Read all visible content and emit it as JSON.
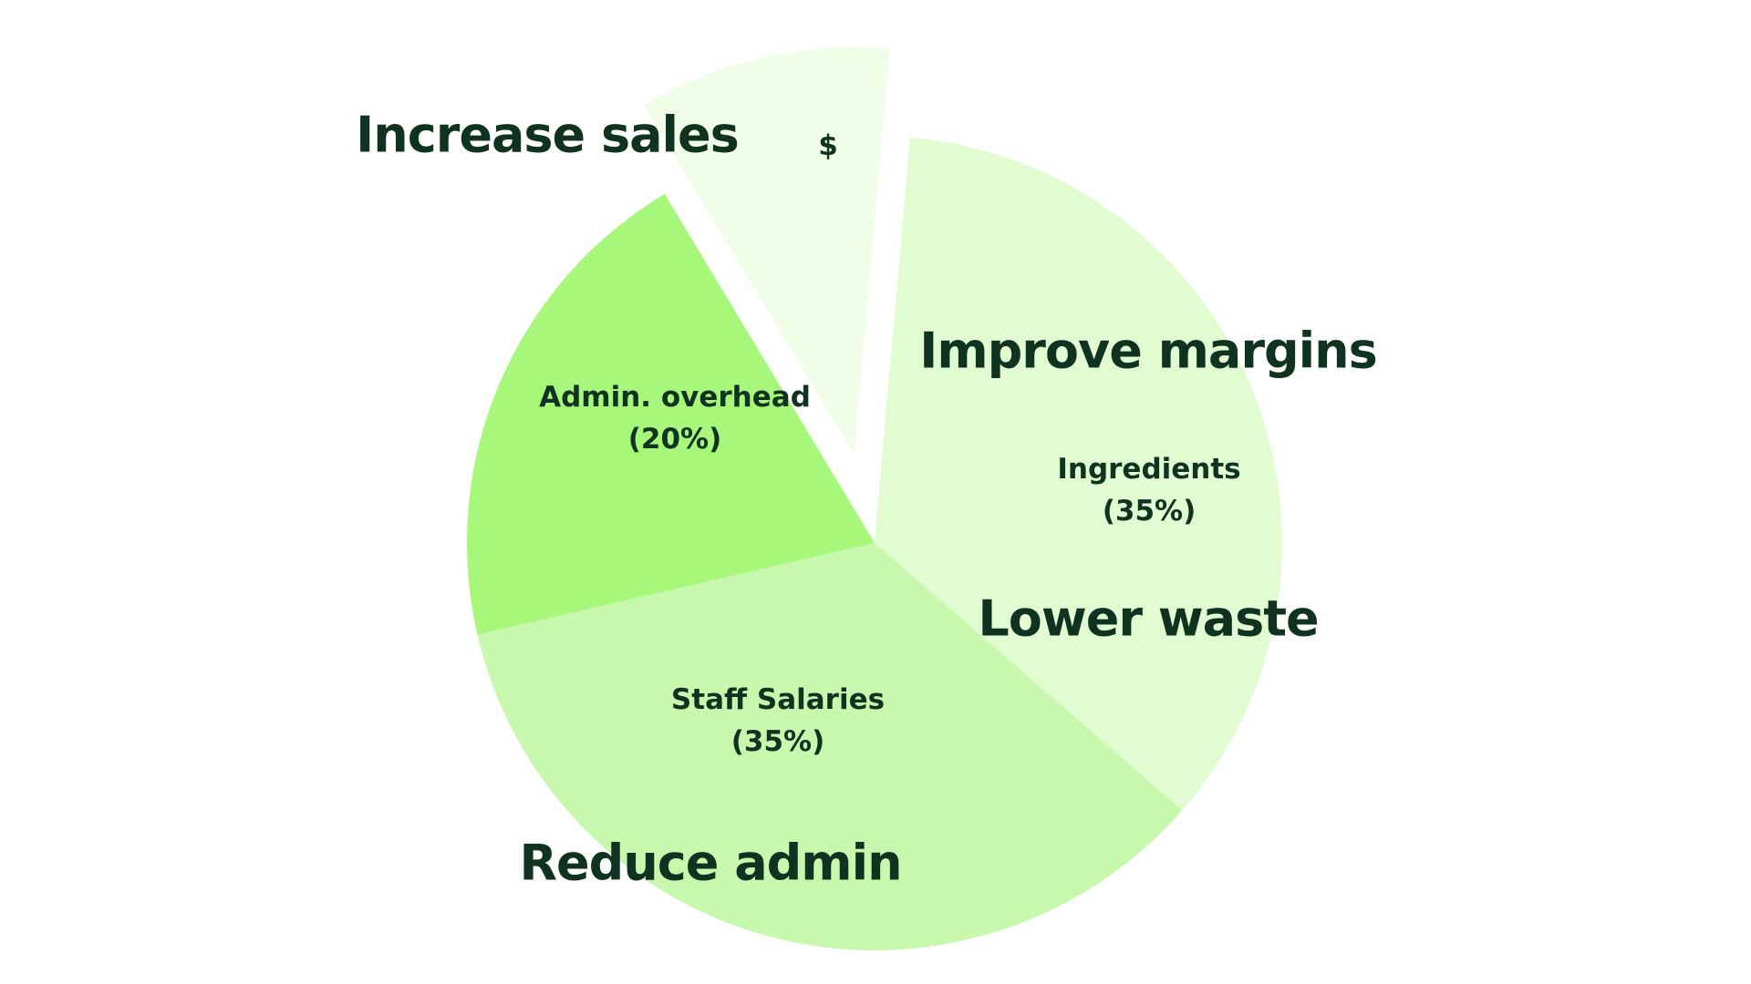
{
  "chart_data": {
    "type": "pie",
    "categories": [
      "Ingredients",
      "Staff Salaries",
      "Admin. overhead",
      "$"
    ],
    "values": [
      35,
      35,
      20,
      10
    ],
    "value_labels": [
      "(35%)",
      "(35%)",
      "(20%)",
      null
    ],
    "colors": [
      "#e0fcd0",
      "#c8f7ae",
      "#a6f77a",
      "#f0fee8"
    ],
    "exploded": [
      false,
      false,
      false,
      true
    ],
    "annotations": [
      "Increase sales",
      "Improve margins",
      "Lower waste",
      "Reduce admin"
    ]
  }
}
